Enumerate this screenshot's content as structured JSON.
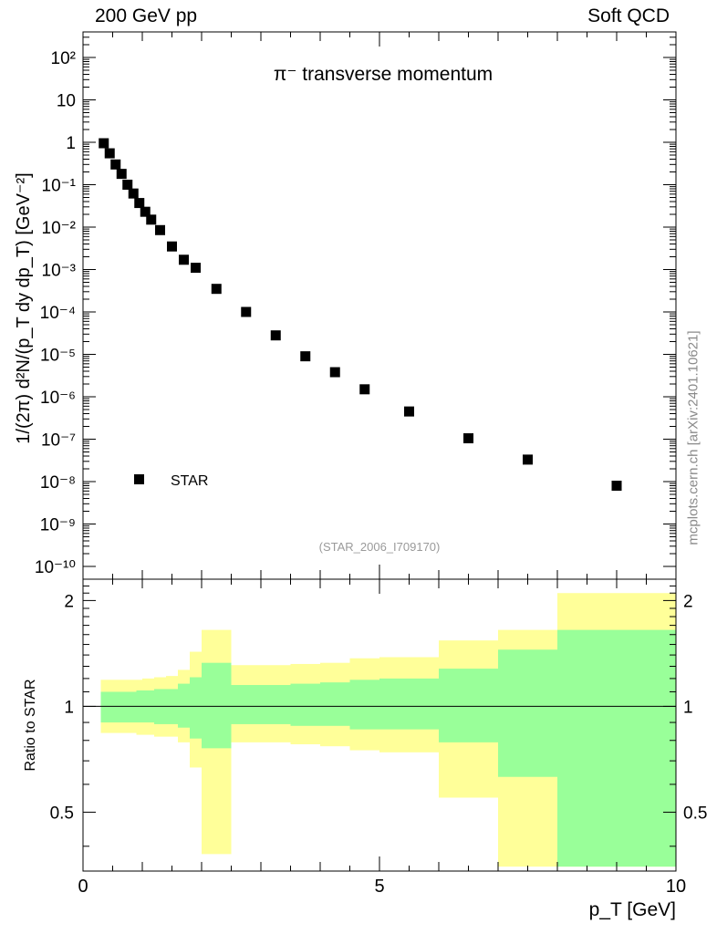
{
  "header": {
    "left": "200 GeV pp",
    "right": "Soft QCD"
  },
  "side_label": "mcplots.cern.ch [arXiv:2401.10621]",
  "colors": {
    "marker": "#000000",
    "band_outer": "#ffff99",
    "band_inner": "#99ff99",
    "axis": "#000000",
    "tag": "#9a9a9a"
  },
  "chart_data": [
    {
      "type": "scatter",
      "title": "π⁻ transverse momentum",
      "ylabel": "1/(2π)  d²N/(p_T dy dp_T) [GeV⁻²]",
      "y_scale": "log",
      "xlim": [
        0,
        10
      ],
      "ylim": [
        5e-11,
        400
      ],
      "y_ticks": [
        "10⁻¹⁰",
        "10⁻⁹",
        "10⁻⁸",
        "10⁻⁷",
        "10⁻⁶",
        "10⁻⁵",
        "10⁻⁴",
        "10⁻³",
        "10⁻²",
        "10⁻¹",
        "1",
        "10",
        "10²"
      ],
      "legend": {
        "entry": "STAR",
        "placement": "bottom-left"
      },
      "analysis_tag": "(STAR_2006_I709170)",
      "series": [
        {
          "name": "STAR",
          "x": [
            0.35,
            0.45,
            0.55,
            0.65,
            0.75,
            0.85,
            0.95,
            1.05,
            1.15,
            1.3,
            1.5,
            1.7,
            1.9,
            2.25,
            2.75,
            3.25,
            3.75,
            4.25,
            4.75,
            5.5,
            6.5,
            7.5,
            9.0
          ],
          "y": [
            0.95,
            0.55,
            0.3,
            0.18,
            0.1,
            0.062,
            0.037,
            0.023,
            0.015,
            0.0085,
            0.0035,
            0.0017,
            0.0011,
            0.00035,
            0.0001,
            2.8e-05,
            9e-06,
            3.8e-06,
            1.5e-06,
            4.5e-07,
            1.05e-07,
            3.3e-08,
            8e-09
          ]
        }
      ]
    },
    {
      "type": "area",
      "ylabel": "Ratio to STAR",
      "xlabel": "p_T [GeV]",
      "xlim": [
        0,
        10
      ],
      "ylim": [
        0.34,
        2.3
      ],
      "x_ticks": [
        "0",
        "5",
        "10"
      ],
      "y_ticks": [
        "0.5",
        "1",
        "2"
      ],
      "reference_line": 1,
      "bands": [
        {
          "x_low": 0.3,
          "x_high": 0.4,
          "outer": [
            0.84,
            1.19
          ],
          "inner": [
            0.9,
            1.1
          ]
        },
        {
          "x_low": 0.4,
          "x_high": 0.5,
          "outer": [
            0.84,
            1.19
          ],
          "inner": [
            0.9,
            1.1
          ]
        },
        {
          "x_low": 0.5,
          "x_high": 0.6,
          "outer": [
            0.84,
            1.19
          ],
          "inner": [
            0.9,
            1.1
          ]
        },
        {
          "x_low": 0.6,
          "x_high": 0.7,
          "outer": [
            0.84,
            1.19
          ],
          "inner": [
            0.9,
            1.1
          ]
        },
        {
          "x_low": 0.7,
          "x_high": 0.8,
          "outer": [
            0.84,
            1.19
          ],
          "inner": [
            0.9,
            1.1
          ]
        },
        {
          "x_low": 0.8,
          "x_high": 0.9,
          "outer": [
            0.84,
            1.19
          ],
          "inner": [
            0.9,
            1.1
          ]
        },
        {
          "x_low": 0.9,
          "x_high": 1.0,
          "outer": [
            0.83,
            1.19
          ],
          "inner": [
            0.9,
            1.11
          ]
        },
        {
          "x_low": 1.0,
          "x_high": 1.1,
          "outer": [
            0.83,
            1.2
          ],
          "inner": [
            0.9,
            1.11
          ]
        },
        {
          "x_low": 1.1,
          "x_high": 1.2,
          "outer": [
            0.83,
            1.2
          ],
          "inner": [
            0.9,
            1.11
          ]
        },
        {
          "x_low": 1.2,
          "x_high": 1.4,
          "outer": [
            0.82,
            1.21
          ],
          "inner": [
            0.89,
            1.12
          ]
        },
        {
          "x_low": 1.4,
          "x_high": 1.6,
          "outer": [
            0.82,
            1.22
          ],
          "inner": [
            0.89,
            1.12
          ]
        },
        {
          "x_low": 1.6,
          "x_high": 1.8,
          "outer": [
            0.79,
            1.27
          ],
          "inner": [
            0.87,
            1.16
          ]
        },
        {
          "x_low": 1.8,
          "x_high": 2.0,
          "outer": [
            0.67,
            1.43
          ],
          "inner": [
            0.81,
            1.21
          ]
        },
        {
          "x_low": 2.0,
          "x_high": 2.5,
          "outer": [
            0.38,
            1.65
          ],
          "inner": [
            0.76,
            1.33
          ]
        },
        {
          "x_low": 2.5,
          "x_high": 3.0,
          "outer": [
            0.79,
            1.31
          ],
          "inner": [
            0.89,
            1.15
          ]
        },
        {
          "x_low": 3.0,
          "x_high": 3.5,
          "outer": [
            0.79,
            1.31
          ],
          "inner": [
            0.89,
            1.15
          ]
        },
        {
          "x_low": 3.5,
          "x_high": 4.0,
          "outer": [
            0.78,
            1.32
          ],
          "inner": [
            0.88,
            1.16
          ]
        },
        {
          "x_low": 4.0,
          "x_high": 4.5,
          "outer": [
            0.77,
            1.33
          ],
          "inner": [
            0.88,
            1.17
          ]
        },
        {
          "x_low": 4.5,
          "x_high": 5.0,
          "outer": [
            0.75,
            1.37
          ],
          "inner": [
            0.86,
            1.19
          ]
        },
        {
          "x_low": 5.0,
          "x_high": 6.0,
          "outer": [
            0.74,
            1.38
          ],
          "inner": [
            0.86,
            1.2
          ]
        },
        {
          "x_low": 6.0,
          "x_high": 7.0,
          "outer": [
            0.55,
            1.54
          ],
          "inner": [
            0.79,
            1.28
          ]
        },
        {
          "x_low": 7.0,
          "x_high": 8.0,
          "outer": [
            0.35,
            1.65
          ],
          "inner": [
            0.63,
            1.45
          ]
        },
        {
          "x_low": 8.0,
          "x_high": 10.0,
          "outer": [
            0.35,
            2.1
          ],
          "inner": [
            0.35,
            1.65
          ]
        }
      ]
    }
  ]
}
